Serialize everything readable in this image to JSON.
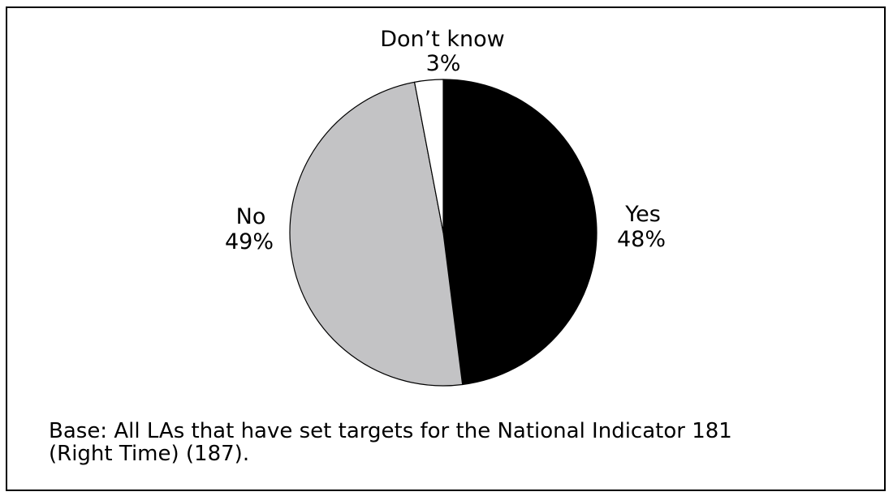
{
  "chart_data": {
    "type": "pie",
    "slices": [
      {
        "label": "Yes",
        "value": 48,
        "value_label": "48%",
        "color": "#000000"
      },
      {
        "label": "No",
        "value": 49,
        "value_label": "49%",
        "color": "#c3c3c5"
      },
      {
        "label": "Don’t know",
        "value": 3,
        "value_label": "3%",
        "color": "#ffffff"
      }
    ],
    "start": "12 o'clock",
    "direction": "clockwise",
    "legend": "none"
  },
  "note": {
    "line1": "Base: All LAs that have set targets for the National Indicator 181",
    "line2": "(Right Time) (187)."
  }
}
